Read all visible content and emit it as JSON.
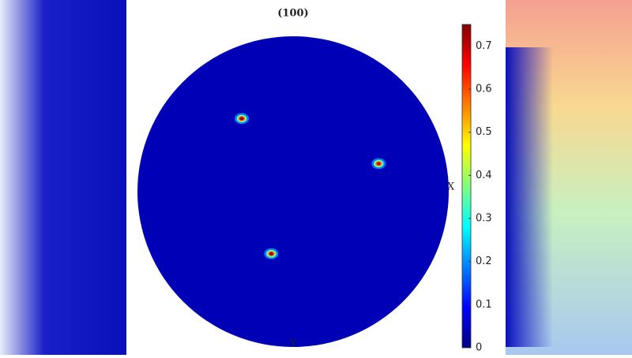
{
  "chart_data": {
    "type": "pole-figure",
    "title": "(100)",
    "x_label": "X",
    "y_label": "Y",
    "base_value": 0.04,
    "peaks": [
      {
        "x": -0.33,
        "y": -0.47,
        "value": 0.75
      },
      {
        "x": 0.55,
        "y": -0.18,
        "value": 0.72
      },
      {
        "x": -0.14,
        "y": 0.4,
        "value": 0.75
      }
    ],
    "clim": [
      0,
      0.75
    ],
    "cticks": [
      0,
      0.1,
      0.2,
      0.3,
      0.4,
      0.5,
      0.6,
      0.7
    ],
    "colormap": "jet"
  }
}
